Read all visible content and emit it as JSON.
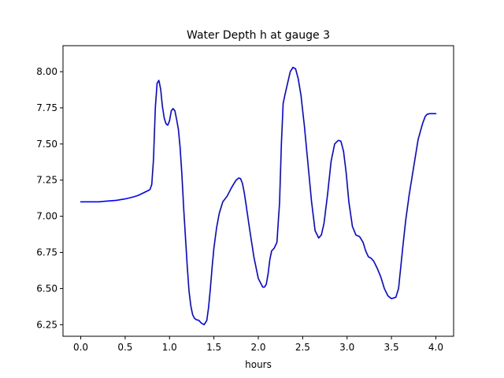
{
  "chart_data": {
    "type": "line",
    "title": "Water Depth h at gauge 3",
    "xlabel": "hours",
    "ylabel": "",
    "xlim": [
      -0.2,
      4.2
    ],
    "ylim": [
      6.17,
      8.18
    ],
    "grid": false,
    "x_ticks": [
      0.0,
      0.5,
      1.0,
      1.5,
      2.0,
      2.5,
      3.0,
      3.5,
      4.0
    ],
    "x_tick_labels": [
      "0.0",
      "0.5",
      "1.0",
      "1.5",
      "2.0",
      "2.5",
      "3.0",
      "3.5",
      "4.0"
    ],
    "y_ticks": [
      6.25,
      6.5,
      6.75,
      7.0,
      7.25,
      7.5,
      7.75,
      8.0
    ],
    "y_tick_labels": [
      "6.25",
      "6.50",
      "6.75",
      "7.00",
      "7.25",
      "7.50",
      "7.75",
      "8.00"
    ],
    "series": [
      {
        "color": "#0000ff",
        "x": [
          0.0,
          0.1,
          0.2,
          0.3,
          0.4,
          0.5,
          0.6,
          0.65,
          0.7,
          0.75,
          0.78,
          0.8,
          0.82,
          0.84,
          0.86,
          0.88,
          0.9,
          0.92,
          0.94,
          0.96,
          0.98,
          1.0,
          1.02,
          1.04,
          1.06,
          1.08,
          1.1,
          1.12,
          1.14,
          1.16,
          1.18,
          1.2,
          1.22,
          1.24,
          1.26,
          1.28,
          1.3,
          1.33,
          1.36,
          1.39,
          1.42,
          1.44,
          1.46,
          1.48,
          1.5,
          1.53,
          1.56,
          1.6,
          1.65,
          1.7,
          1.75,
          1.78,
          1.8,
          1.82,
          1.84,
          1.86,
          1.9,
          1.95,
          2.0,
          2.05,
          2.07,
          2.09,
          2.11,
          2.13,
          2.15,
          2.18,
          2.21,
          2.24,
          2.26,
          2.28,
          2.3,
          2.33,
          2.36,
          2.39,
          2.42,
          2.45,
          2.48,
          2.52,
          2.56,
          2.6,
          2.64,
          2.68,
          2.71,
          2.74,
          2.78,
          2.82,
          2.86,
          2.9,
          2.93,
          2.96,
          2.99,
          3.02,
          3.06,
          3.1,
          3.14,
          3.18,
          3.21,
          3.24,
          3.27,
          3.3,
          3.34,
          3.38,
          3.42,
          3.46,
          3.5,
          3.55,
          3.58,
          3.6,
          3.63,
          3.66,
          3.7,
          3.75,
          3.8,
          3.85,
          3.88,
          3.9,
          3.93,
          3.96,
          4.0
        ],
        "y": [
          7.1,
          7.1,
          7.1,
          7.105,
          7.11,
          7.12,
          7.135,
          7.145,
          7.16,
          7.175,
          7.185,
          7.22,
          7.4,
          7.75,
          7.92,
          7.94,
          7.88,
          7.76,
          7.68,
          7.64,
          7.63,
          7.66,
          7.73,
          7.745,
          7.73,
          7.67,
          7.6,
          7.47,
          7.28,
          7.05,
          6.85,
          6.65,
          6.48,
          6.38,
          6.32,
          6.295,
          6.285,
          6.28,
          6.26,
          6.25,
          6.28,
          6.37,
          6.5,
          6.65,
          6.78,
          6.92,
          7.02,
          7.1,
          7.14,
          7.2,
          7.25,
          7.265,
          7.26,
          7.23,
          7.17,
          7.09,
          6.92,
          6.72,
          6.57,
          6.51,
          6.51,
          6.53,
          6.6,
          6.7,
          6.76,
          6.78,
          6.82,
          7.1,
          7.5,
          7.78,
          7.84,
          7.92,
          8.0,
          8.03,
          8.02,
          7.95,
          7.84,
          7.62,
          7.36,
          7.1,
          6.9,
          6.85,
          6.87,
          6.95,
          7.15,
          7.38,
          7.5,
          7.525,
          7.52,
          7.45,
          7.3,
          7.1,
          6.93,
          6.87,
          6.86,
          6.82,
          6.76,
          6.72,
          6.71,
          6.69,
          6.64,
          6.58,
          6.5,
          6.45,
          6.43,
          6.44,
          6.5,
          6.62,
          6.8,
          6.97,
          7.15,
          7.34,
          7.53,
          7.64,
          7.69,
          7.705,
          7.71,
          7.71,
          7.71
        ]
      }
    ]
  }
}
